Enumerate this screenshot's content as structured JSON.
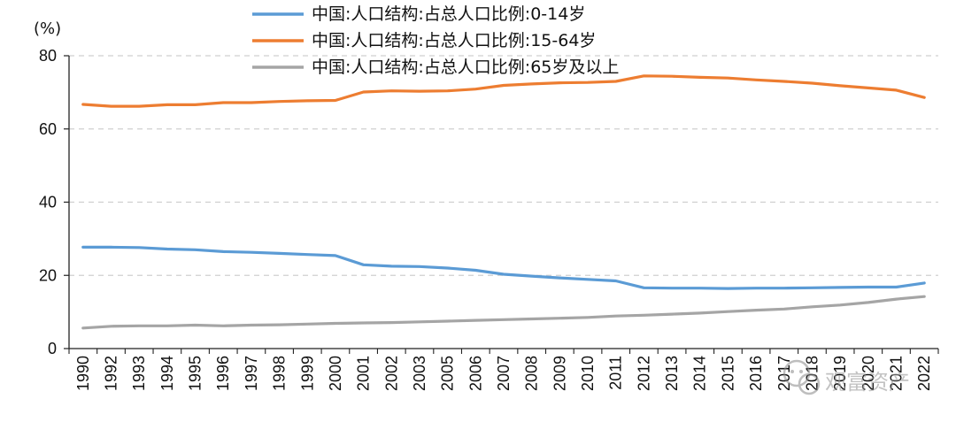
{
  "chart_data": {
    "type": "line",
    "ylabel": "(%)",
    "ylim": [
      0,
      80
    ],
    "yticks": [
      0,
      20,
      40,
      60,
      80
    ],
    "grid": "horizontal-dashed",
    "legend_position": "top-center",
    "categories": [
      "1990",
      "1992",
      "1993",
      "1994",
      "1995",
      "1996",
      "1997",
      "1998",
      "1999",
      "2000",
      "2001",
      "2002",
      "2003",
      "2005",
      "2006",
      "2007",
      "2008",
      "2009",
      "2010",
      "2011",
      "2012",
      "2013",
      "2014",
      "2015",
      "2016",
      "2017",
      "2018",
      "2019",
      "2020",
      "2021",
      "2022"
    ],
    "series": [
      {
        "name": "中国:人口结构:占总人口比例:0-14岁",
        "color": "#5b9bd5",
        "values": [
          27.7,
          27.7,
          27.6,
          27.2,
          27.0,
          26.5,
          26.3,
          26.0,
          25.7,
          25.4,
          22.9,
          22.5,
          22.4,
          22.0,
          21.4,
          20.3,
          19.8,
          19.3,
          18.9,
          18.5,
          16.6,
          16.5,
          16.5,
          16.4,
          16.5,
          16.5,
          16.6,
          16.7,
          16.8,
          16.8,
          17.9
        ]
      },
      {
        "name": "中国:人口结构:占总人口比例:15-64岁",
        "color": "#ed7d31",
        "values": [
          66.7,
          66.2,
          66.2,
          66.6,
          66.6,
          67.2,
          67.2,
          67.5,
          67.7,
          67.8,
          70.1,
          70.4,
          70.3,
          70.4,
          70.9,
          71.9,
          72.3,
          72.6,
          72.7,
          73.0,
          74.5,
          74.4,
          74.1,
          73.9,
          73.4,
          73.0,
          72.5,
          71.8,
          71.2,
          70.6,
          68.6
        ]
      },
      {
        "name": "中国:人口结构:占总人口比例:65岁及以上",
        "color": "#a5a5a5",
        "values": [
          5.6,
          6.1,
          6.2,
          6.2,
          6.4,
          6.2,
          6.4,
          6.5,
          6.7,
          6.9,
          7.0,
          7.1,
          7.3,
          7.5,
          7.7,
          7.9,
          8.1,
          8.3,
          8.5,
          8.9,
          9.1,
          9.4,
          9.7,
          10.1,
          10.5,
          10.8,
          11.4,
          11.9,
          12.6,
          13.5,
          14.2
        ]
      }
    ]
  },
  "watermark": {
    "text": "观富资产",
    "icon": "wechat-icon"
  }
}
